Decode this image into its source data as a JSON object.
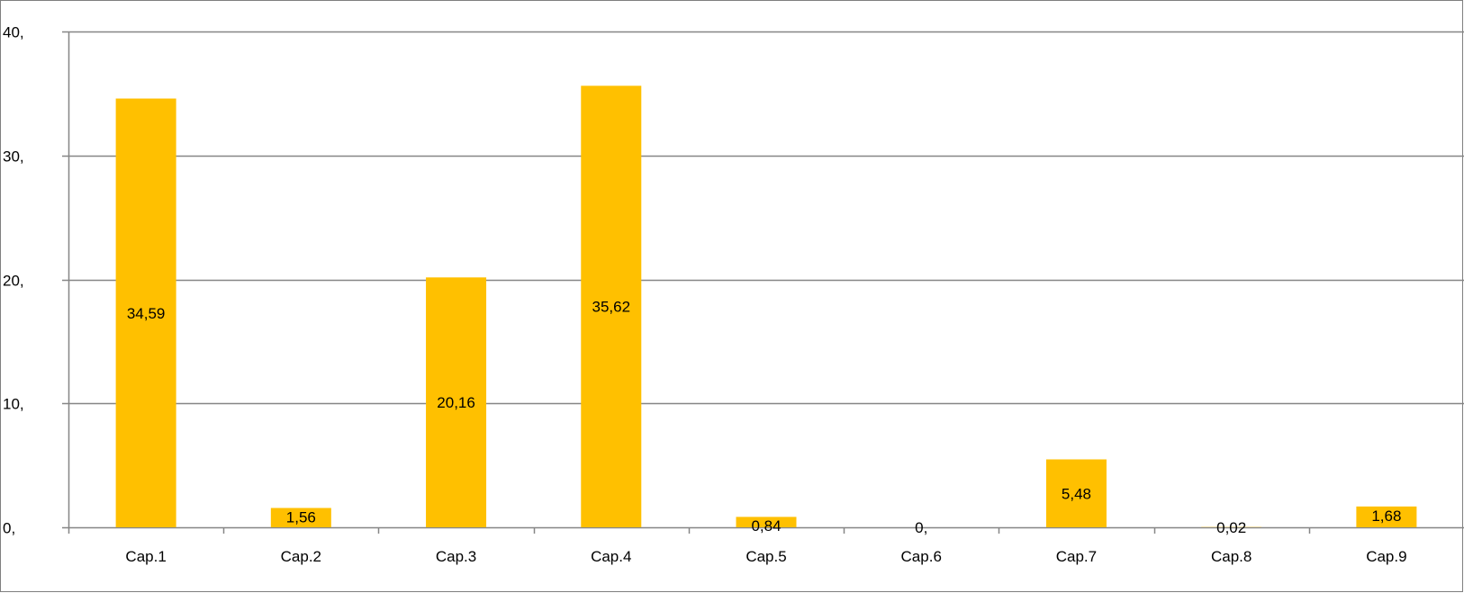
{
  "chart_data": {
    "type": "bar",
    "categories": [
      "Cap.1",
      "Cap.2",
      "Cap.3",
      "Cap.4",
      "Cap.5",
      "Cap.6",
      "Cap.7",
      "Cap.8",
      "Cap.9"
    ],
    "values": [
      34.59,
      1.56,
      20.16,
      35.62,
      0.84,
      0,
      5.48,
      0.02,
      1.68
    ],
    "data_labels": [
      "34,59",
      "1,56",
      "20,16",
      "35,62",
      "0,84",
      "0,",
      "5,48",
      "0,02",
      "1,68"
    ],
    "y_ticks": [
      0,
      10,
      20,
      30,
      40
    ],
    "y_tick_labels": [
      "0,",
      "10,",
      "20,",
      "30,",
      "40,"
    ],
    "ylim": [
      0,
      40
    ],
    "grid": true,
    "legend": "none",
    "bar_color": "#FFC000",
    "gridline_color": "#868686",
    "title": "",
    "xlabel": "",
    "ylabel": ""
  }
}
